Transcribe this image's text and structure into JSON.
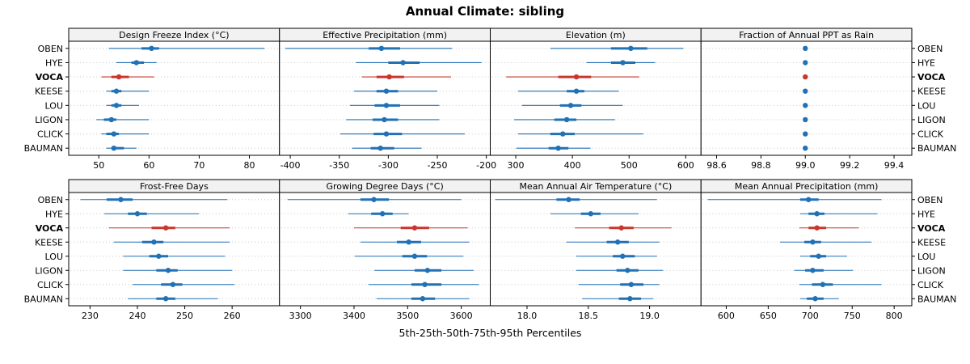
{
  "chart_data": {
    "type": "scatter",
    "subtype": "percentile-dotplot-trellis",
    "title": "Annual Climate: sibling",
    "xlabel": "5th-25th-50th-75th-95th Percentiles",
    "categories": [
      "OBEN",
      "HYE",
      "VOCA",
      "KEESE",
      "LOU",
      "LIGON",
      "CLICK",
      "BAUMAN"
    ],
    "highlight_category": "VOCA",
    "percentile_labels": [
      "p5",
      "p25",
      "p50",
      "p75",
      "p95"
    ],
    "legend_position": "none",
    "grid": "dotted-horizontal",
    "colors": {
      "series_color": "#2171b5",
      "highlight_color": "#c8372d",
      "panel_header_bg": "#f2f2f2",
      "panel_border": "#000000",
      "grid_color": "#c8c8c8"
    },
    "panels": [
      {
        "title": "Design Freeze Index (°C)",
        "row": 0,
        "col": 0,
        "xlim": [
          44,
          86
        ],
        "ticks": [
          "50",
          "60",
          "70",
          "80"
        ],
        "values": [
          [
            52,
            58.5,
            60.5,
            62,
            83
          ],
          [
            53.5,
            56.5,
            57.5,
            59,
            61.5
          ],
          [
            50.5,
            52.5,
            54,
            56,
            61
          ],
          [
            51.5,
            52.5,
            53.5,
            54.5,
            60
          ],
          [
            51.5,
            52.5,
            53.5,
            54.5,
            58
          ],
          [
            49.5,
            51,
            52.5,
            53.5,
            60
          ],
          [
            50.5,
            51.5,
            53,
            54,
            60
          ],
          [
            51.5,
            52.5,
            53,
            55,
            57.5
          ]
        ]
      },
      {
        "title": "Effective Precipitation (mm)",
        "row": 0,
        "col": 1,
        "xlim": [
          -411,
          -196
        ],
        "ticks": [
          "-400",
          "-350",
          "-300",
          "-250",
          "-200"
        ],
        "values": [
          [
            -405,
            -320,
            -307,
            -288,
            -235
          ],
          [
            -333,
            -300,
            -285,
            -268,
            -205
          ],
          [
            -327,
            -312,
            -299,
            -284,
            -236
          ],
          [
            -335,
            -312,
            -302,
            -290,
            -250
          ],
          [
            -339,
            -314,
            -302,
            -288,
            -248
          ],
          [
            -343,
            -316,
            -304,
            -290,
            -248
          ],
          [
            -349,
            -315,
            -302,
            -286,
            -222
          ],
          [
            -337,
            -318,
            -308,
            -294,
            -266
          ]
        ]
      },
      {
        "title": "Elevation (m)",
        "row": 0,
        "col": 2,
        "xlim": [
          255,
          627
        ],
        "ticks": [
          "300",
          "400",
          "500",
          "600"
        ],
        "values": [
          [
            361,
            468,
            503,
            532,
            596
          ],
          [
            425,
            468,
            489,
            511,
            546
          ],
          [
            283,
            375,
            407,
            433,
            518
          ],
          [
            304,
            390,
            407,
            421,
            482
          ],
          [
            311,
            378,
            397,
            416,
            489
          ],
          [
            297,
            368,
            390,
            407,
            475
          ],
          [
            304,
            361,
            383,
            404,
            525
          ],
          [
            301,
            358,
            375,
            393,
            432
          ]
        ]
      },
      {
        "title": "Fraction of Annual PPT as Rain",
        "row": 0,
        "col": 3,
        "xlim": [
          98.53,
          99.48
        ],
        "ticks": [
          "98.6",
          "98.8",
          "99.0",
          "99.2",
          "99.4"
        ],
        "values": [
          [
            99,
            99,
            99,
            99,
            99
          ],
          [
            99,
            99,
            99,
            99,
            99
          ],
          [
            99,
            99,
            99,
            99,
            99
          ],
          [
            99,
            99,
            99,
            99,
            99
          ],
          [
            99,
            99,
            99,
            99,
            99
          ],
          [
            99,
            99,
            99,
            99,
            99
          ],
          [
            99,
            99,
            99,
            99,
            99
          ],
          [
            99,
            99,
            99,
            99,
            99
          ]
        ]
      },
      {
        "title": "Frost-Free Days",
        "row": 1,
        "col": 0,
        "xlim": [
          225.5,
          270
        ],
        "ticks": [
          "230",
          "240",
          "250",
          "260"
        ],
        "values": [
          [
            228,
            233.5,
            236.5,
            239,
            259
          ],
          [
            233,
            238,
            240,
            242,
            253
          ],
          [
            234,
            243,
            246,
            248,
            259.5
          ],
          [
            235,
            241,
            243.5,
            245.5,
            259.5
          ],
          [
            237,
            242.5,
            244.5,
            246.5,
            258.5
          ],
          [
            237,
            244,
            246.5,
            248.5,
            260
          ],
          [
            239,
            245,
            247.5,
            249.5,
            260.5
          ],
          [
            238,
            244,
            246,
            248,
            257
          ]
        ]
      },
      {
        "title": "Growing Degree Days (°C)",
        "row": 1,
        "col": 1,
        "xlim": [
          3261,
          3654
        ],
        "ticks": [
          "3300",
          "3400",
          "3500",
          "3600"
        ],
        "values": [
          [
            3276,
            3412,
            3437,
            3465,
            3600
          ],
          [
            3389,
            3432,
            3453,
            3472,
            3502
          ],
          [
            3400,
            3487,
            3513,
            3540,
            3612
          ],
          [
            3412,
            3480,
            3502,
            3525,
            3615
          ],
          [
            3401,
            3490,
            3513,
            3536,
            3604
          ],
          [
            3438,
            3513,
            3537,
            3563,
            3623
          ],
          [
            3427,
            3507,
            3532,
            3563,
            3633
          ],
          [
            3442,
            3507,
            3528,
            3551,
            3615
          ]
        ]
      },
      {
        "title": "Mean Annual Air Temperature (°C)",
        "row": 1,
        "col": 2,
        "xlim": [
          17.7,
          19.42
        ],
        "ticks": [
          "18.0",
          "18.5",
          "19.0"
        ],
        "values": [
          [
            17.74,
            18.24,
            18.34,
            18.43,
            19.06
          ],
          [
            18.19,
            18.44,
            18.52,
            18.6,
            18.91
          ],
          [
            18.39,
            18.67,
            18.77,
            18.87,
            19.18
          ],
          [
            18.32,
            18.65,
            18.74,
            18.83,
            19.08
          ],
          [
            18.4,
            18.7,
            18.78,
            18.88,
            19.06
          ],
          [
            18.4,
            18.73,
            18.82,
            18.91,
            19.11
          ],
          [
            18.42,
            18.76,
            18.85,
            18.95,
            19.08
          ],
          [
            18.45,
            18.75,
            18.84,
            18.93,
            19.03
          ]
        ]
      },
      {
        "title": "Mean Annual Precipitation (mm)",
        "row": 1,
        "col": 3,
        "xlim": [
          570,
          821
        ],
        "ticks": [
          "600",
          "650",
          "700",
          "750",
          "800"
        ],
        "values": [
          [
            578,
            688,
            698,
            710,
            785
          ],
          [
            688,
            698,
            708,
            717,
            780
          ],
          [
            687,
            698,
            708,
            719,
            758
          ],
          [
            664,
            693,
            703,
            713,
            773
          ],
          [
            688,
            700,
            710,
            719,
            744
          ],
          [
            681,
            694,
            703,
            716,
            751
          ],
          [
            687,
            702,
            715,
            727,
            785
          ],
          [
            688,
            696,
            706,
            716,
            734
          ]
        ]
      }
    ]
  }
}
